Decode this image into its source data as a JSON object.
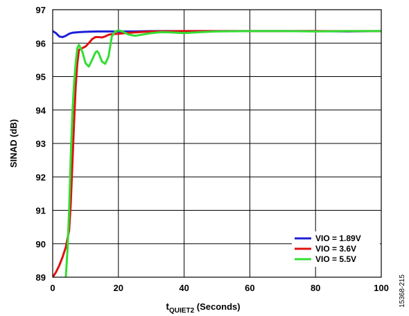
{
  "chart_data": {
    "type": "line",
    "title": "",
    "xlabel_main": "t",
    "xlabel_sub": "QUIET2",
    "xlabel_rest": " (Seconds)",
    "ylabel": "SINAD (dB)",
    "xlim": [
      0,
      100
    ],
    "ylim": [
      89,
      97
    ],
    "x_ticks": [
      "0",
      "20",
      "40",
      "60",
      "80",
      "100"
    ],
    "y_ticks": [
      "89",
      "90",
      "91",
      "92",
      "93",
      "94",
      "95",
      "96",
      "97"
    ],
    "grid": true,
    "legend_position": "bottom-right",
    "figure_id": "15368-215",
    "series": [
      {
        "name": "VIO = 1.89V",
        "color": "#1f1fd6",
        "points": [
          [
            0,
            96.36
          ],
          [
            1,
            96.3
          ],
          [
            2,
            96.2
          ],
          [
            3,
            96.18
          ],
          [
            4,
            96.22
          ],
          [
            5,
            96.28
          ],
          [
            6,
            96.31
          ],
          [
            8,
            96.33
          ],
          [
            10,
            96.34
          ],
          [
            14,
            96.35
          ],
          [
            18,
            96.35
          ],
          [
            25,
            96.35
          ],
          [
            30,
            96.36
          ],
          [
            40,
            96.36
          ],
          [
            50,
            96.36
          ],
          [
            60,
            96.36
          ],
          [
            70,
            96.36
          ],
          [
            80,
            96.36
          ],
          [
            90,
            96.35
          ],
          [
            100,
            96.36
          ]
        ]
      },
      {
        "name": "VIO = 3.6V",
        "color": "#e01010",
        "points": [
          [
            0,
            89.0
          ],
          [
            1,
            89.15
          ],
          [
            2,
            89.35
          ],
          [
            3,
            89.6
          ],
          [
            4,
            89.9
          ],
          [
            5,
            90.4
          ],
          [
            5.5,
            91.2
          ],
          [
            6,
            92.4
          ],
          [
            6.5,
            93.6
          ],
          [
            7,
            94.7
          ],
          [
            7.5,
            95.4
          ],
          [
            8,
            95.8
          ],
          [
            9,
            95.85
          ],
          [
            10,
            95.9
          ],
          [
            11,
            96.0
          ],
          [
            12,
            96.12
          ],
          [
            13,
            96.18
          ],
          [
            14,
            96.18
          ],
          [
            15,
            96.17
          ],
          [
            16,
            96.2
          ],
          [
            17,
            96.25
          ],
          [
            18,
            96.27
          ],
          [
            20,
            96.28
          ],
          [
            22,
            96.3
          ],
          [
            25,
            96.32
          ],
          [
            30,
            96.35
          ],
          [
            40,
            96.36
          ],
          [
            50,
            96.36
          ],
          [
            60,
            96.36
          ],
          [
            70,
            96.36
          ],
          [
            80,
            96.36
          ],
          [
            90,
            96.36
          ],
          [
            100,
            96.36
          ]
        ]
      },
      {
        "name": "VIO = 5.5V",
        "color": "#33dd33",
        "points": [
          [
            4,
            89.0
          ],
          [
            4.5,
            89.8
          ],
          [
            5,
            91.0
          ],
          [
            5.5,
            92.6
          ],
          [
            6,
            93.9
          ],
          [
            6.5,
            94.8
          ],
          [
            7,
            95.4
          ],
          [
            7.5,
            95.85
          ],
          [
            8,
            95.95
          ],
          [
            9,
            95.75
          ],
          [
            10,
            95.4
          ],
          [
            11,
            95.3
          ],
          [
            12,
            95.5
          ],
          [
            13,
            95.72
          ],
          [
            13.5,
            95.76
          ],
          [
            14,
            95.7
          ],
          [
            15,
            95.45
          ],
          [
            16,
            95.38
          ],
          [
            17,
            95.6
          ],
          [
            17.5,
            95.9
          ],
          [
            18,
            96.2
          ],
          [
            19,
            96.35
          ],
          [
            20,
            96.38
          ],
          [
            21,
            96.36
          ],
          [
            23,
            96.26
          ],
          [
            25,
            96.22
          ],
          [
            27,
            96.25
          ],
          [
            30,
            96.3
          ],
          [
            33,
            96.33
          ],
          [
            36,
            96.32
          ],
          [
            40,
            96.3
          ],
          [
            45,
            96.33
          ],
          [
            50,
            96.35
          ],
          [
            60,
            96.36
          ],
          [
            70,
            96.36
          ],
          [
            80,
            96.35
          ],
          [
            90,
            96.36
          ],
          [
            100,
            96.36
          ]
        ]
      }
    ]
  }
}
